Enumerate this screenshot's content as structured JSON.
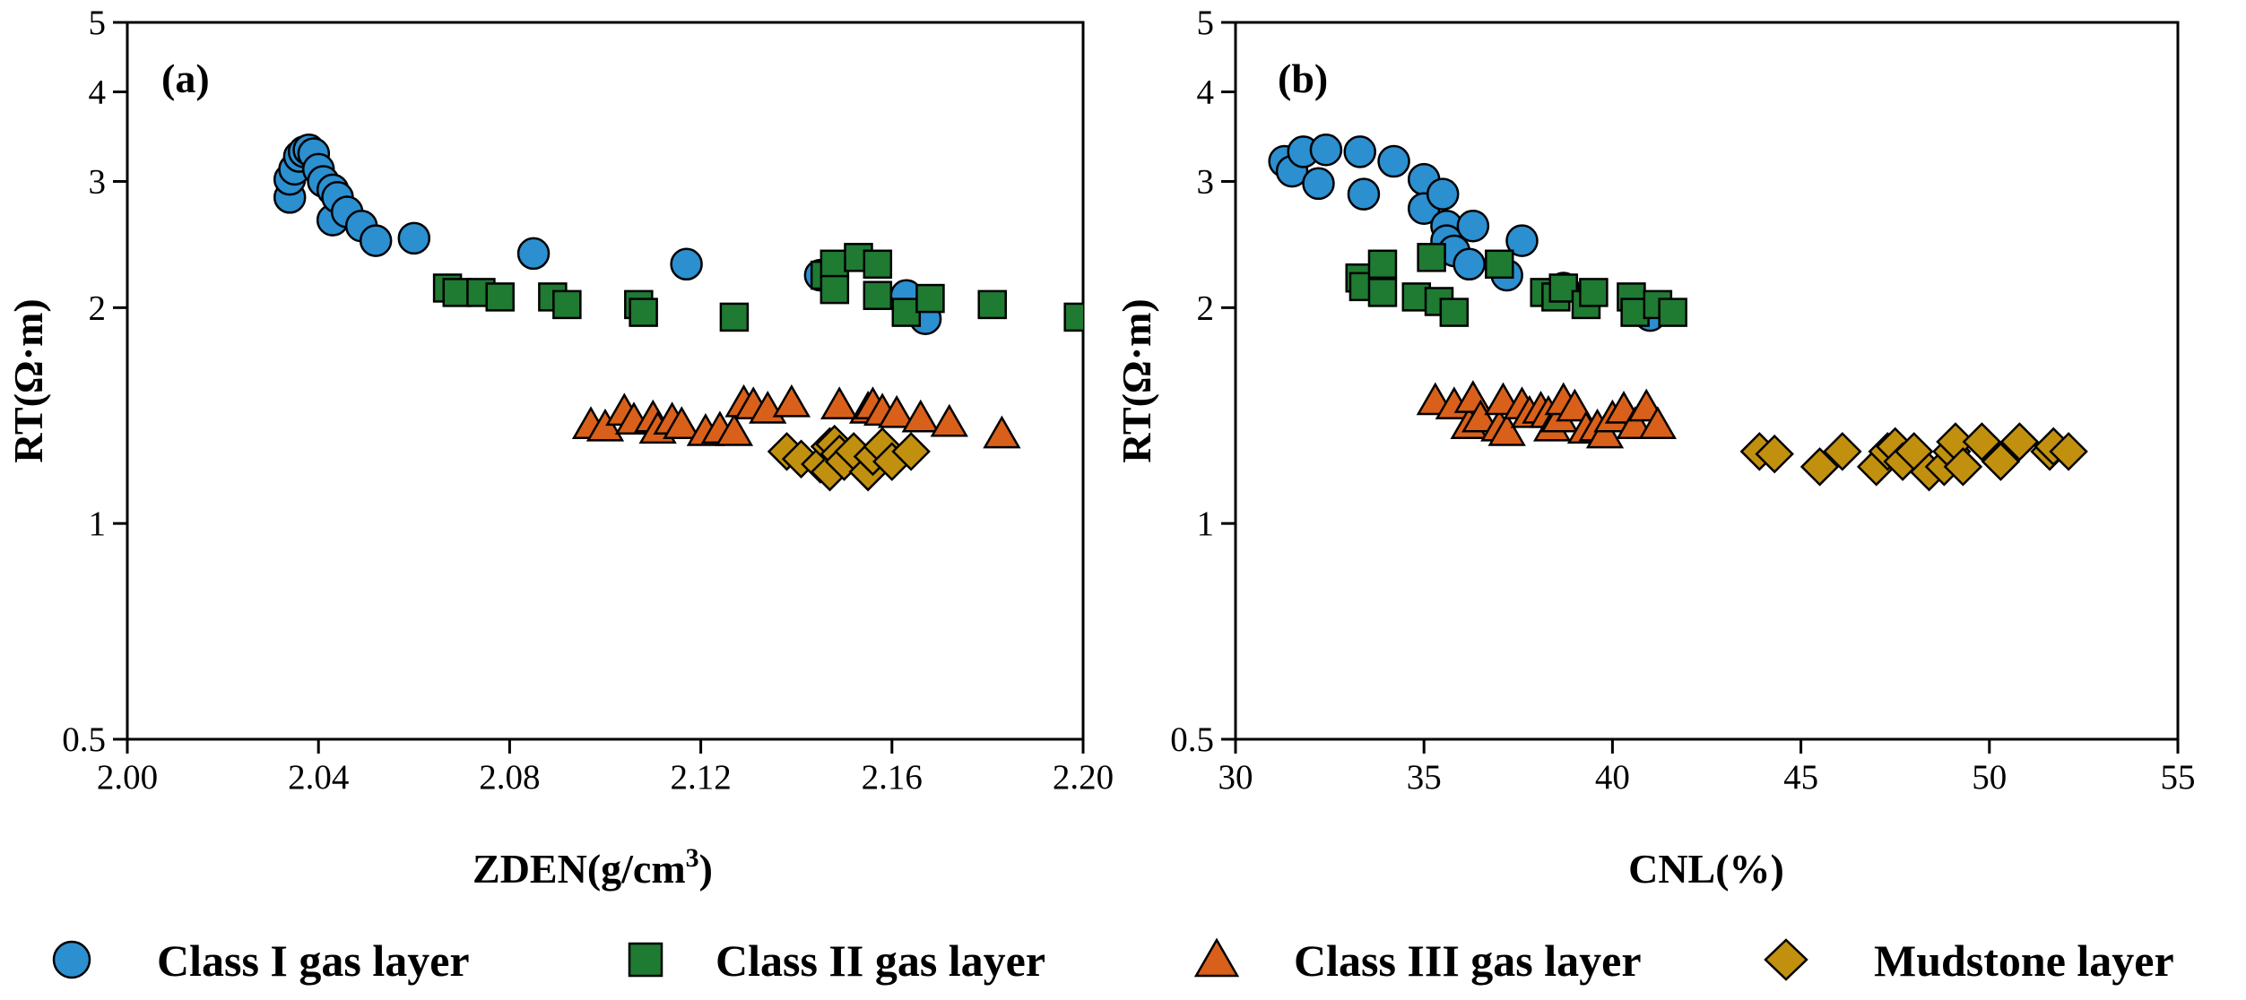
{
  "legend": [
    {
      "key": "class1",
      "label": "Class I gas layer",
      "marker": "circle",
      "color": "#2b8fd0"
    },
    {
      "key": "class2",
      "label": "Class II gas layer",
      "marker": "square",
      "color": "#1f7a32"
    },
    {
      "key": "class3",
      "label": "Class III gas layer",
      "marker": "triangle",
      "color": "#d9601a"
    },
    {
      "key": "mud",
      "label": "Mudstone layer",
      "marker": "diamond",
      "color": "#c1900f"
    }
  ],
  "chart_data": [
    {
      "type": "scatter",
      "panel_label": "(a)",
      "xlabel": "ZDEN(g/cm",
      "xlabel_superscript": "3",
      "xlabel_suffix": ")",
      "ylabel": "RT(Ω·m)",
      "yscale": "log",
      "xlim": [
        2.0,
        2.2
      ],
      "ylim": [
        0.5,
        5
      ],
      "xticks": [
        2.0,
        2.04,
        2.08,
        2.12,
        2.16,
        2.2
      ],
      "xtick_labels": [
        "2.00",
        "2.04",
        "2.08",
        "2.12",
        "2.16",
        "2.20"
      ],
      "yticks": [
        0.5,
        1,
        2,
        3,
        4,
        5
      ],
      "ytick_labels": [
        "0.5",
        "1",
        "2",
        "3",
        "4",
        "5"
      ],
      "series": [
        {
          "name": "Class I gas layer",
          "points": [
            [
              2.034,
              2.85
            ],
            [
              2.034,
              3.02
            ],
            [
              2.035,
              3.12
            ],
            [
              2.036,
              3.25
            ],
            [
              2.037,
              3.3
            ],
            [
              2.038,
              3.32
            ],
            [
              2.039,
              3.28
            ],
            [
              2.04,
              3.12
            ],
            [
              2.041,
              3.0
            ],
            [
              2.043,
              2.92
            ],
            [
              2.043,
              2.65
            ],
            [
              2.044,
              2.85
            ],
            [
              2.046,
              2.72
            ],
            [
              2.049,
              2.6
            ],
            [
              2.052,
              2.48
            ],
            [
              2.06,
              2.5
            ],
            [
              2.085,
              2.38
            ],
            [
              2.117,
              2.3
            ],
            [
              2.145,
              2.22
            ],
            [
              2.163,
              2.08
            ],
            [
              2.167,
              1.93
            ]
          ]
        },
        {
          "name": "Class II gas layer",
          "points": [
            [
              2.067,
              2.13
            ],
            [
              2.069,
              2.1
            ],
            [
              2.074,
              2.1
            ],
            [
              2.078,
              2.07
            ],
            [
              2.089,
              2.07
            ],
            [
              2.092,
              2.02
            ],
            [
              2.107,
              2.02
            ],
            [
              2.108,
              1.97
            ],
            [
              2.127,
              1.94
            ],
            [
              2.146,
              2.22
            ],
            [
              2.148,
              2.3
            ],
            [
              2.148,
              2.12
            ],
            [
              2.153,
              2.35
            ],
            [
              2.157,
              2.3
            ],
            [
              2.157,
              2.08
            ],
            [
              2.163,
              1.97
            ],
            [
              2.168,
              2.06
            ],
            [
              2.181,
              2.02
            ],
            [
              2.199,
              1.94
            ]
          ]
        },
        {
          "name": "Class III gas layer",
          "points": [
            [
              2.097,
              1.37
            ],
            [
              2.1,
              1.36
            ],
            [
              2.104,
              1.43
            ],
            [
              2.106,
              1.39
            ],
            [
              2.11,
              1.4
            ],
            [
              2.111,
              1.35
            ],
            [
              2.114,
              1.39
            ],
            [
              2.116,
              1.37
            ],
            [
              2.121,
              1.34
            ],
            [
              2.124,
              1.35
            ],
            [
              2.127,
              1.34
            ],
            [
              2.129,
              1.47
            ],
            [
              2.131,
              1.46
            ],
            [
              2.134,
              1.44
            ],
            [
              2.139,
              1.47
            ],
            [
              2.149,
              1.46
            ],
            [
              2.155,
              1.44
            ],
            [
              2.156,
              1.46
            ],
            [
              2.158,
              1.43
            ],
            [
              2.161,
              1.42
            ],
            [
              2.166,
              1.4
            ],
            [
              2.172,
              1.38
            ],
            [
              2.183,
              1.33
            ]
          ]
        },
        {
          "name": "Mudstone layer",
          "points": [
            [
              2.138,
              1.26
            ],
            [
              2.141,
              1.23
            ],
            [
              2.145,
              1.21
            ],
            [
              2.147,
              1.28
            ],
            [
              2.147,
              1.18
            ],
            [
              2.148,
              1.29
            ],
            [
              2.149,
              1.25
            ],
            [
              2.15,
              1.22
            ],
            [
              2.152,
              1.26
            ],
            [
              2.155,
              1.18
            ],
            [
              2.156,
              1.24
            ],
            [
              2.158,
              1.28
            ],
            [
              2.16,
              1.22
            ],
            [
              2.164,
              1.26
            ]
          ]
        }
      ]
    },
    {
      "type": "scatter",
      "panel_label": "(b)",
      "xlabel": "CNL(%)",
      "ylabel": "RT(Ω·m)",
      "yscale": "log",
      "xlim": [
        30,
        55
      ],
      "ylim": [
        0.5,
        5
      ],
      "xticks": [
        30,
        35,
        40,
        45,
        50,
        55
      ],
      "xtick_labels": [
        "30",
        "35",
        "40",
        "45",
        "50",
        "55"
      ],
      "yticks": [
        0.5,
        1,
        2,
        3,
        4,
        5
      ],
      "ytick_labels": [
        "0.5",
        "1",
        "2",
        "3",
        "4",
        "5"
      ],
      "series": [
        {
          "name": "Class I gas layer",
          "points": [
            [
              31.3,
              3.2
            ],
            [
              31.5,
              3.1
            ],
            [
              31.8,
              3.3
            ],
            [
              32.2,
              2.98
            ],
            [
              32.4,
              3.32
            ],
            [
              33.3,
              3.3
            ],
            [
              33.4,
              2.88
            ],
            [
              34.2,
              3.2
            ],
            [
              35.0,
              3.02
            ],
            [
              35.0,
              2.75
            ],
            [
              35.5,
              2.88
            ],
            [
              35.6,
              2.6
            ],
            [
              35.6,
              2.48
            ],
            [
              35.8,
              2.4
            ],
            [
              36.2,
              2.3
            ],
            [
              36.3,
              2.6
            ],
            [
              37.2,
              2.22
            ],
            [
              37.6,
              2.48
            ],
            [
              38.7,
              2.13
            ],
            [
              41.0,
              1.95
            ]
          ]
        },
        {
          "name": "Class II gas layer",
          "points": [
            [
              33.3,
              2.2
            ],
            [
              33.4,
              2.14
            ],
            [
              33.9,
              2.3
            ],
            [
              33.9,
              2.1
            ],
            [
              34.8,
              2.07
            ],
            [
              35.2,
              2.35
            ],
            [
              35.4,
              2.04
            ],
            [
              35.8,
              1.97
            ],
            [
              37.0,
              2.3
            ],
            [
              38.2,
              2.1
            ],
            [
              38.5,
              2.07
            ],
            [
              38.7,
              2.13
            ],
            [
              39.3,
              2.02
            ],
            [
              39.5,
              2.1
            ],
            [
              40.5,
              2.07
            ],
            [
              40.6,
              1.97
            ],
            [
              41.2,
              2.02
            ],
            [
              41.6,
              1.97
            ]
          ]
        },
        {
          "name": "Class III gas layer",
          "points": [
            [
              35.3,
              1.48
            ],
            [
              35.8,
              1.46
            ],
            [
              36.2,
              1.37
            ],
            [
              36.3,
              1.49
            ],
            [
              36.5,
              1.4
            ],
            [
              37.0,
              1.36
            ],
            [
              37.1,
              1.48
            ],
            [
              37.2,
              1.34
            ],
            [
              37.6,
              1.46
            ],
            [
              37.8,
              1.42
            ],
            [
              38.1,
              1.44
            ],
            [
              38.3,
              1.42
            ],
            [
              38.4,
              1.36
            ],
            [
              38.6,
              1.4
            ],
            [
              38.7,
              1.48
            ],
            [
              39.0,
              1.45
            ],
            [
              39.3,
              1.35
            ],
            [
              39.6,
              1.36
            ],
            [
              39.8,
              1.33
            ],
            [
              40.0,
              1.4
            ],
            [
              40.3,
              1.44
            ],
            [
              40.6,
              1.37
            ],
            [
              40.9,
              1.45
            ],
            [
              41.2,
              1.37
            ]
          ]
        },
        {
          "name": "Mudstone layer",
          "points": [
            [
              43.9,
              1.26
            ],
            [
              44.3,
              1.25
            ],
            [
              45.5,
              1.2
            ],
            [
              46.1,
              1.26
            ],
            [
              47.0,
              1.2
            ],
            [
              47.3,
              1.26
            ],
            [
              47.5,
              1.28
            ],
            [
              47.7,
              1.22
            ],
            [
              48.0,
              1.26
            ],
            [
              48.4,
              1.18
            ],
            [
              48.8,
              1.2
            ],
            [
              49.0,
              1.26
            ],
            [
              49.1,
              1.3
            ],
            [
              49.3,
              1.2
            ],
            [
              49.8,
              1.3
            ],
            [
              50.3,
              1.22
            ],
            [
              50.8,
              1.3
            ],
            [
              51.6,
              1.26
            ],
            [
              51.7,
              1.28
            ],
            [
              52.1,
              1.26
            ]
          ]
        }
      ]
    }
  ]
}
